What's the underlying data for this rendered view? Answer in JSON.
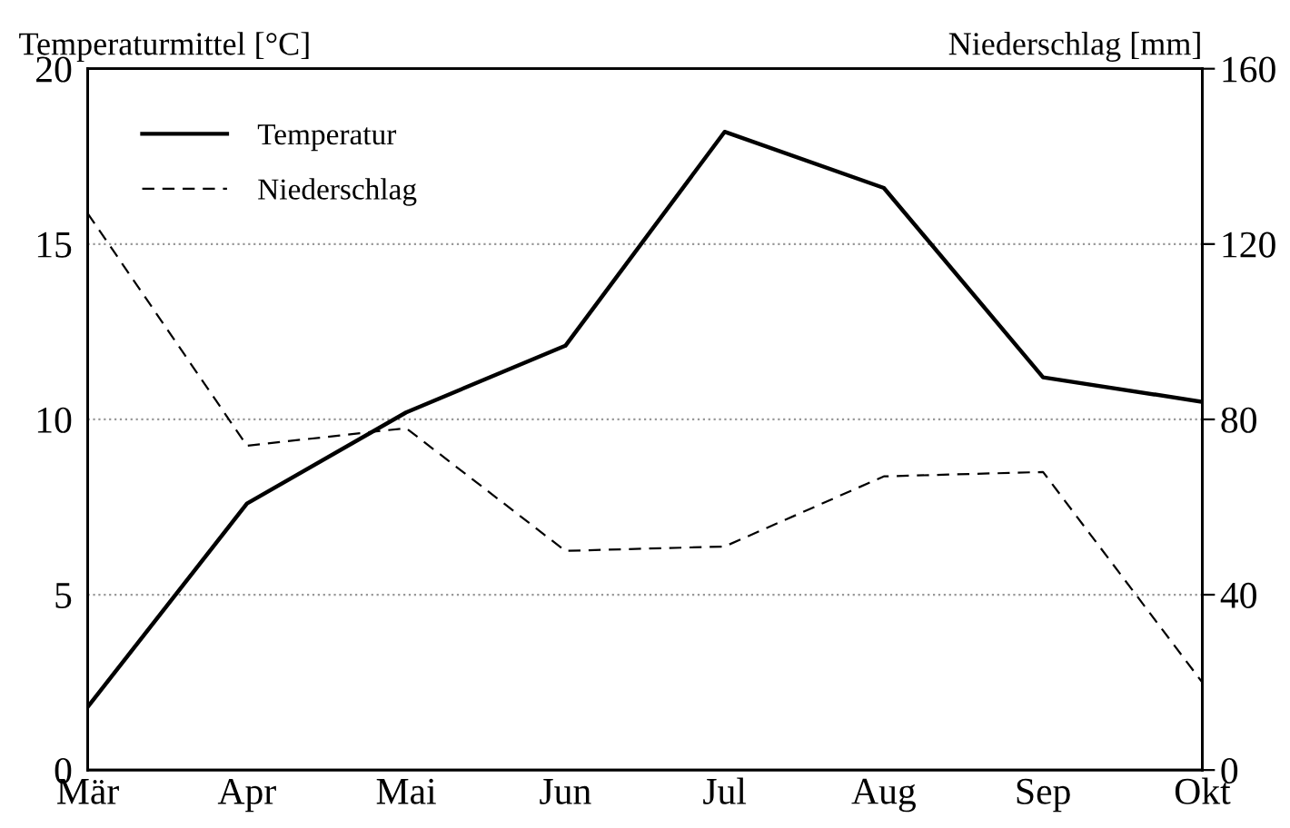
{
  "chart_data": {
    "type": "line",
    "categories": [
      "Mär",
      "Apr",
      "Mai",
      "Jun",
      "Jul",
      "Aug",
      "Sep",
      "Okt"
    ],
    "ylabel": "Temperaturmittel [°C]",
    "y2label": "Niederschlag [mm]",
    "ylim": [
      0,
      20
    ],
    "yticks": [
      0,
      5,
      10,
      15,
      20
    ],
    "y2lim": [
      0,
      160
    ],
    "y2ticks": [
      0,
      40,
      80,
      120,
      160
    ],
    "grid": "y",
    "legend": "top left",
    "series": [
      {
        "name": "Temperatur",
        "color": "#000000",
        "line_style": "solid",
        "values": [
          1.8,
          7.6,
          10.2,
          12.1,
          18.2,
          16.6,
          11.2,
          10.5
        ]
      },
      {
        "name": "Niederschlag",
        "color": "#000000",
        "line_style": "dashed",
        "axis": "y2",
        "values": [
          127,
          74,
          78,
          50,
          51,
          67,
          68,
          20
        ]
      }
    ]
  }
}
